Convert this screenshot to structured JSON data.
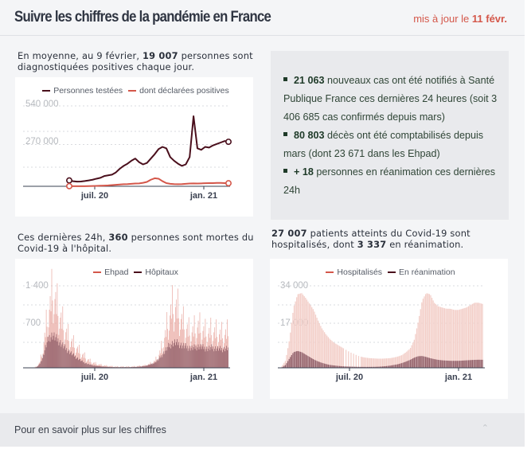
{
  "header": {
    "title": "Suivre les chiffres de la pandémie en France",
    "updated_prefix": "mis à jour le ",
    "updated_date": "11 févr."
  },
  "colors": {
    "accent_red": "#d4574a",
    "dark_maroon": "#4a0f1c",
    "pink_light": "#f3cfc9",
    "mauve": "#8a5560",
    "summary_green": "#1e3a28"
  },
  "intro_tests": {
    "pre": "En moyenne, au 9 février, ",
    "bold": "19 007",
    "post": " personnes sont diagnostiquées positives chaque jour."
  },
  "summary": {
    "items": [
      {
        "bold": "21 063",
        "text": " nouveaux cas ont été notifiés à Santé Publique France ces dernières 24 heures (soit 3 406 685 cas confirmés depuis mars)"
      },
      {
        "bold": "80 803",
        "text": " décès ont été comptabilisés depuis mars (dont 23 671 dans les Ehpad)"
      },
      {
        "bold": "+ 18",
        "text": " personnes en réanimation ces dernières 24h"
      }
    ]
  },
  "intro_deaths": {
    "pre": "Ces dernières 24h, ",
    "bold": "360",
    "post": " personnes sont mortes du Covid-19 à l'hôpital."
  },
  "intro_hosp": {
    "bold1": "27 007",
    "mid": " patients atteints du Covid-19 sont hospitalisés, dont ",
    "bold2": "3 337",
    "post": " en réanimation."
  },
  "footer": {
    "label": "Pour en savoir plus sur les chiffres",
    "chevron_icon": "chevron-up-icon"
  },
  "chart_data": [
    {
      "type": "line",
      "legend": [
        "Personnes testées",
        "dont déclarées positives"
      ],
      "legend_position": "top-center",
      "yticks": [
        "540 000",
        "270 000"
      ],
      "ylim": [
        0,
        540000
      ],
      "xticks": [
        "juil. 20",
        "jan. 21"
      ],
      "x_range": [
        "2020-05-13",
        "2021-02-09"
      ],
      "series": [
        {
          "name": "Personnes testées",
          "color": "#4a0f1c",
          "values": [
            40000,
            35000,
            32000,
            33000,
            36000,
            40000,
            45000,
            52000,
            58000,
            70000,
            75000,
            80000,
            95000,
            120000,
            140000,
            155000,
            175000,
            190000,
            165000,
            150000,
            160000,
            190000,
            220000,
            255000,
            270000,
            260000,
            200000,
            175000,
            155000,
            140000,
            150000,
            200000,
            480000,
            260000,
            250000,
            270000,
            265000,
            280000,
            290000,
            300000,
            310000,
            305000
          ]
        },
        {
          "name": "dont déclarées positives",
          "color": "#d4574a",
          "values": [
            1000,
            1000,
            1000,
            1000,
            1000,
            1500,
            2000,
            3000,
            4000,
            5000,
            6000,
            8000,
            10000,
            12000,
            14000,
            15000,
            17000,
            19000,
            20000,
            24000,
            30000,
            45000,
            55000,
            52000,
            35000,
            22000,
            17000,
            15000,
            14000,
            15000,
            17000,
            19000,
            20000,
            19000,
            20000,
            21000,
            22000,
            22000,
            23000,
            23000,
            22000,
            21000
          ]
        }
      ]
    },
    {
      "type": "bar",
      "legend": [
        "Ehpad",
        "Hôpitaux"
      ],
      "legend_position": "top-center",
      "yticks": [
        "1 400",
        "700"
      ],
      "ylim": [
        0,
        1400
      ],
      "xticks": [
        "juil. 20",
        "jan. 21"
      ],
      "x_range": [
        "2020-03-01",
        "2021-02-09"
      ],
      "series": [
        {
          "name": "Ehpad",
          "color": "#e8a49c",
          "envelope": [
            0,
            20,
            80,
            300,
            700,
            1000,
            1300,
            1100,
            900,
            750,
            600,
            500,
            420,
            350,
            280,
            220,
            170,
            120,
            90,
            70,
            55,
            45,
            35,
            30,
            25,
            20,
            20,
            20,
            20,
            20,
            20,
            25,
            30,
            35,
            40,
            60,
            80,
            120,
            200,
            350,
            550,
            800,
            1000,
            1050,
            950,
            800,
            700,
            620,
            600,
            650,
            700,
            650,
            600,
            580,
            620,
            600,
            580,
            560,
            560,
            600
          ]
        },
        {
          "name": "Hôpitaux",
          "color": "#8a5560",
          "envelope": [
            0,
            10,
            60,
            200,
            400,
            550,
            580,
            520,
            470,
            400,
            340,
            290,
            240,
            190,
            150,
            110,
            80,
            60,
            45,
            35,
            28,
            22,
            18,
            15,
            12,
            10,
            10,
            10,
            10,
            10,
            12,
            15,
            20,
            25,
            35,
            50,
            70,
            100,
            150,
            220,
            300,
            380,
            430,
            450,
            430,
            400,
            380,
            360,
            350,
            360,
            380,
            370,
            350,
            340,
            360,
            350,
            340,
            330,
            340,
            350
          ]
        }
      ]
    },
    {
      "type": "area",
      "legend": [
        "Hospitalisés",
        "En réanimation"
      ],
      "legend_position": "top-center",
      "yticks": [
        "34 000",
        "17 000"
      ],
      "ylim": [
        0,
        34000
      ],
      "xticks": [
        "juil. 20",
        "jan. 21"
      ],
      "x_range": [
        "2020-03-15",
        "2021-02-09"
      ],
      "series": [
        {
          "name": "Hospitalisés",
          "color": "#f3cfc9",
          "values": [
            500,
            3000,
            12000,
            25000,
            30500,
            31000,
            29000,
            26500,
            24000,
            20000,
            16500,
            14000,
            12000,
            10500,
            9500,
            8500,
            7500,
            6500,
            5800,
            5000,
            4500,
            4200,
            4000,
            3900,
            3800,
            3800,
            3900,
            4000,
            4300,
            4700,
            5300,
            6500,
            8000,
            11500,
            19000,
            28000,
            31000,
            30500,
            27000,
            25500,
            25000,
            24500,
            24500,
            24000,
            24000,
            24500,
            25000,
            26000,
            27000,
            27000,
            26500
          ]
        },
        {
          "name": "En réanimation",
          "color": "#8a5560",
          "values": [
            100,
            1200,
            4000,
            6500,
            7000,
            6500,
            5500,
            4500,
            3500,
            2700,
            2100,
            1600,
            1200,
            1000,
            800,
            650,
            550,
            500,
            450,
            400,
            380,
            370,
            380,
            400,
            450,
            550,
            700,
            900,
            1200,
            1500,
            2000,
            2600,
            3300,
            4200,
            4800,
            4900,
            4500,
            4000,
            3600,
            3300,
            3100,
            3000,
            2900,
            2900,
            2900,
            3000,
            3100,
            3200,
            3300,
            3350,
            3337
          ]
        }
      ]
    }
  ]
}
